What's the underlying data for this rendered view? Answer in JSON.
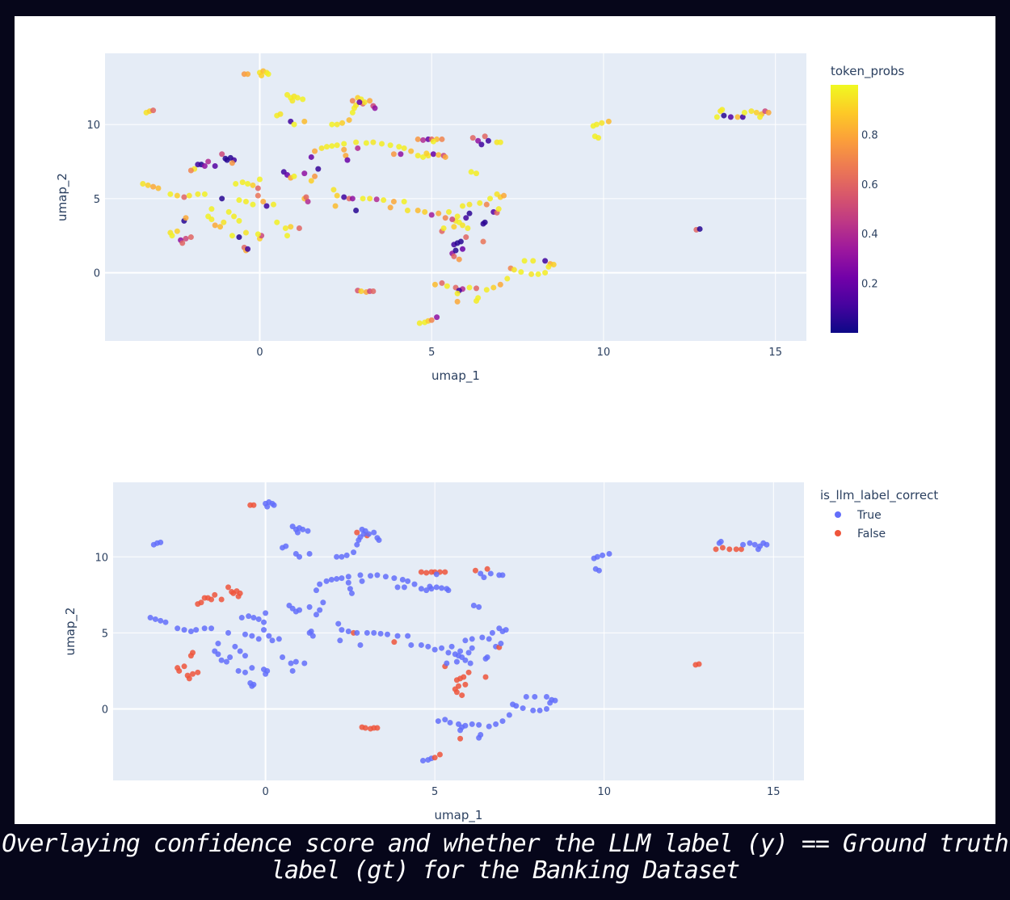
{
  "caption": "Overlaying confidence score and whether the LLM label (y) == Ground truth label (gt) for the Banking Dataset",
  "colors": {
    "true": "#636efa",
    "false": "#EF553B",
    "plot_bg": "#e5ecf6",
    "grid": "#ffffff"
  },
  "chart_data": [
    {
      "type": "scatter",
      "title": "",
      "xlabel": "umap_1",
      "ylabel": "umap_2",
      "xlim": [
        -4.5,
        15.9
      ],
      "ylim": [
        -4.6,
        14.8
      ],
      "xticks": [
        "0",
        "5",
        "10",
        "15"
      ],
      "yticks": [
        "0",
        "5",
        "10"
      ],
      "grid": true,
      "color_by": "token_probs",
      "colorbar": {
        "title": "token_probs",
        "range": [
          0.0,
          1.0
        ],
        "ticks": [
          "0.2",
          "0.4",
          "0.6",
          "0.8"
        ],
        "colorscale": "plasma",
        "placement": "right"
      }
    },
    {
      "type": "scatter",
      "title": "",
      "xlabel": "umap_1",
      "ylabel": "umap_2",
      "xlim": [
        -4.5,
        15.9
      ],
      "ylim": [
        -4.7,
        14.9
      ],
      "xticks": [
        "0",
        "5",
        "10",
        "15"
      ],
      "yticks": [
        "0",
        "5",
        "10"
      ],
      "grid": true,
      "color_by": "is_llm_label_correct",
      "legend": {
        "title": "is_llm_label_correct",
        "entries": [
          "True",
          "False"
        ],
        "placement": "top-right"
      }
    }
  ],
  "points_columns": [
    "umap_1",
    "umap_2",
    "token_probs",
    "is_llm_label_correct"
  ],
  "points": [
    [
      -3.3,
      10.8,
      0.95,
      1
    ],
    [
      -3.2,
      10.9,
      0.9,
      1
    ],
    [
      -3.1,
      10.95,
      0.6,
      1
    ],
    [
      -0.45,
      13.4,
      0.75,
      0
    ],
    [
      -0.35,
      13.4,
      0.8,
      0
    ],
    [
      0.0,
      13.5,
      0.95,
      1
    ],
    [
      0.1,
      13.6,
      0.85,
      1
    ],
    [
      0.2,
      13.5,
      0.95,
      1
    ],
    [
      0.25,
      13.4,
      0.98,
      1
    ],
    [
      0.05,
      13.3,
      0.9,
      1
    ],
    [
      0.8,
      12.0,
      0.97,
      1
    ],
    [
      0.9,
      11.8,
      0.98,
      1
    ],
    [
      1.0,
      11.9,
      0.95,
      1
    ],
    [
      1.1,
      11.8,
      0.97,
      1
    ],
    [
      1.25,
      11.7,
      0.98,
      1
    ],
    [
      0.95,
      11.6,
      0.96,
      1
    ],
    [
      0.5,
      10.6,
      0.97,
      1
    ],
    [
      0.6,
      10.7,
      0.95,
      1
    ],
    [
      0.9,
      10.2,
      0.1,
      1
    ],
    [
      1.0,
      10.0,
      0.98,
      1
    ],
    [
      1.3,
      10.2,
      0.85,
      1
    ],
    [
      2.1,
      10.0,
      0.98,
      1
    ],
    [
      2.25,
      10.0,
      0.96,
      1
    ],
    [
      2.4,
      10.1,
      0.9,
      1
    ],
    [
      2.6,
      10.3,
      0.85,
      1
    ],
    [
      2.7,
      10.8,
      0.98,
      1
    ],
    [
      2.75,
      11.1,
      0.97,
      1
    ],
    [
      2.8,
      11.3,
      0.95,
      1
    ],
    [
      2.7,
      11.6,
      0.7,
      0
    ],
    [
      2.85,
      11.8,
      0.9,
      1
    ],
    [
      2.95,
      11.7,
      0.97,
      1
    ],
    [
      3.0,
      11.4,
      0.6,
      0
    ],
    [
      3.05,
      11.5,
      0.95,
      1
    ],
    [
      3.2,
      11.6,
      0.8,
      1
    ],
    [
      3.3,
      11.25,
      0.5,
      1
    ],
    [
      3.35,
      11.1,
      0.3,
      1
    ],
    [
      2.9,
      11.5,
      0.2,
      1
    ],
    [
      1.5,
      7.8,
      0.2,
      1
    ],
    [
      1.6,
      8.2,
      0.8,
      1
    ],
    [
      1.8,
      8.4,
      0.95,
      1
    ],
    [
      1.95,
      8.5,
      0.97,
      1
    ],
    [
      2.1,
      8.55,
      0.98,
      1
    ],
    [
      2.25,
      8.6,
      0.97,
      1
    ],
    [
      2.45,
      8.3,
      0.8,
      1
    ],
    [
      2.5,
      7.9,
      0.8,
      1
    ],
    [
      2.55,
      7.6,
      0.2,
      1
    ],
    [
      2.45,
      8.7,
      0.98,
      1
    ],
    [
      2.8,
      8.8,
      0.97,
      1
    ],
    [
      2.85,
      8.4,
      0.4,
      1
    ],
    [
      3.1,
      8.75,
      0.98,
      1
    ],
    [
      3.3,
      8.8,
      0.96,
      1
    ],
    [
      3.55,
      8.7,
      0.97,
      1
    ],
    [
      3.8,
      8.6,
      0.98,
      1
    ],
    [
      4.05,
      8.5,
      0.98,
      1
    ],
    [
      4.2,
      8.4,
      0.97,
      1
    ],
    [
      3.9,
      8.0,
      0.75,
      1
    ],
    [
      4.1,
      8.0,
      0.3,
      1
    ],
    [
      4.4,
      8.2,
      0.85,
      1
    ],
    [
      4.6,
      9.0,
      0.75,
      0
    ],
    [
      4.75,
      8.95,
      0.4,
      0
    ],
    [
      4.9,
      9.0,
      0.2,
      0
    ],
    [
      5.0,
      9.0,
      0.6,
      0
    ],
    [
      5.15,
      9.0,
      0.85,
      0
    ],
    [
      5.3,
      9.0,
      0.7,
      0
    ],
    [
      5.05,
      8.85,
      0.98,
      1
    ],
    [
      4.6,
      7.9,
      0.97,
      1
    ],
    [
      4.75,
      7.8,
      0.98,
      1
    ],
    [
      4.9,
      7.9,
      0.95,
      1
    ],
    [
      5.05,
      8.0,
      0.2,
      1
    ],
    [
      5.2,
      7.95,
      0.85,
      1
    ],
    [
      5.35,
      7.9,
      0.5,
      1
    ],
    [
      5.4,
      7.8,
      0.8,
      1
    ],
    [
      4.85,
      8.05,
      0.9,
      1
    ],
    [
      6.2,
      9.1,
      0.6,
      0
    ],
    [
      6.35,
      8.9,
      0.3,
      1
    ],
    [
      6.65,
      8.9,
      0.1,
      1
    ],
    [
      6.9,
      8.8,
      0.95,
      1
    ],
    [
      7.0,
      8.8,
      0.97,
      1
    ],
    [
      6.45,
      8.65,
      0.1,
      1
    ],
    [
      6.55,
      9.2,
      0.6,
      0
    ],
    [
      6.15,
      6.8,
      0.98,
      1
    ],
    [
      6.3,
      6.7,
      0.97,
      1
    ],
    [
      -1.5,
      7.5,
      0.4,
      0
    ],
    [
      -1.7,
      7.3,
      0.05,
      0
    ],
    [
      -1.8,
      7.3,
      0.1,
      0
    ],
    [
      -1.6,
      7.2,
      0.3,
      0
    ],
    [
      -1.9,
      7.0,
      0.95,
      0
    ],
    [
      -2.0,
      6.9,
      0.7,
      0
    ],
    [
      -1.3,
      7.2,
      0.15,
      0
    ],
    [
      -1.1,
      8.0,
      0.5,
      0
    ],
    [
      -0.85,
      7.75,
      0.05,
      0
    ],
    [
      -0.75,
      7.6,
      0.1,
      0
    ],
    [
      -0.95,
      7.6,
      0.05,
      0
    ],
    [
      -1.0,
      7.7,
      0.05,
      0
    ],
    [
      -0.8,
      7.4,
      0.75,
      0
    ],
    [
      -3.4,
      6.0,
      0.95,
      1
    ],
    [
      -3.25,
      5.9,
      0.9,
      1
    ],
    [
      -3.1,
      5.8,
      0.8,
      1
    ],
    [
      -2.95,
      5.7,
      0.85,
      1
    ],
    [
      -2.6,
      5.3,
      0.98,
      1
    ],
    [
      -2.4,
      5.2,
      0.9,
      1
    ],
    [
      -2.2,
      5.1,
      0.6,
      1
    ],
    [
      -2.05,
      5.2,
      0.95,
      1
    ],
    [
      -1.8,
      5.3,
      0.97,
      1
    ],
    [
      -1.6,
      5.3,
      0.98,
      1
    ],
    [
      -1.1,
      5.0,
      0.05,
      1
    ],
    [
      -0.7,
      6.0,
      0.98,
      1
    ],
    [
      -0.5,
      6.1,
      0.97,
      1
    ],
    [
      -0.35,
      6.0,
      0.98,
      1
    ],
    [
      -0.2,
      5.9,
      0.9,
      1
    ],
    [
      -0.05,
      5.7,
      0.6,
      1
    ],
    [
      0.0,
      6.3,
      0.98,
      1
    ],
    [
      -0.05,
      5.2,
      0.65,
      1
    ],
    [
      -0.6,
      4.9,
      0.98,
      1
    ],
    [
      -0.4,
      4.8,
      0.97,
      1
    ],
    [
      -0.2,
      4.6,
      0.98,
      1
    ],
    [
      0.1,
      4.8,
      0.8,
      1
    ],
    [
      0.2,
      4.5,
      0.1,
      1
    ],
    [
      0.4,
      4.6,
      0.97,
      1
    ],
    [
      0.5,
      3.4,
      0.98,
      1
    ],
    [
      0.75,
      3.0,
      0.97,
      1
    ],
    [
      0.9,
      3.1,
      0.9,
      1
    ],
    [
      1.15,
      3.0,
      0.6,
      1
    ],
    [
      0.8,
      2.5,
      0.98,
      1
    ],
    [
      0.7,
      6.8,
      0.1,
      1
    ],
    [
      0.8,
      6.6,
      0.2,
      1
    ],
    [
      0.9,
      6.4,
      0.8,
      1
    ],
    [
      1.0,
      6.5,
      0.98,
      1
    ],
    [
      1.3,
      6.7,
      0.3,
      1
    ],
    [
      1.5,
      6.2,
      0.9,
      1
    ],
    [
      1.6,
      6.5,
      0.75,
      1
    ],
    [
      1.7,
      7.0,
      0.08,
      1
    ],
    [
      1.3,
      5.0,
      0.85,
      1
    ],
    [
      1.4,
      4.8,
      0.4,
      1
    ],
    [
      1.35,
      5.1,
      0.6,
      1
    ],
    [
      2.15,
      5.6,
      0.95,
      1
    ],
    [
      2.25,
      5.2,
      0.9,
      1
    ],
    [
      2.45,
      5.1,
      0.1,
      1
    ],
    [
      2.6,
      5.0,
      0.6,
      0
    ],
    [
      2.7,
      5.0,
      0.3,
      1
    ],
    [
      2.8,
      4.2,
      0.05,
      1
    ],
    [
      2.2,
      4.5,
      0.85,
      1
    ],
    [
      3.0,
      5.0,
      0.98,
      1
    ],
    [
      3.2,
      5.0,
      0.95,
      1
    ],
    [
      3.4,
      4.95,
      0.4,
      1
    ],
    [
      3.6,
      4.9,
      0.97,
      1
    ],
    [
      3.9,
      4.8,
      0.8,
      1
    ],
    [
      4.2,
      4.8,
      0.98,
      1
    ],
    [
      3.8,
      4.4,
      0.8,
      0
    ],
    [
      4.3,
      4.2,
      0.95,
      1
    ],
    [
      4.6,
      4.2,
      0.85,
      1
    ],
    [
      4.8,
      4.1,
      0.9,
      1
    ],
    [
      5.0,
      3.9,
      0.35,
      1
    ],
    [
      5.2,
      4.0,
      0.8,
      1
    ],
    [
      5.4,
      3.7,
      0.7,
      1
    ],
    [
      5.5,
      4.1,
      0.97,
      1
    ],
    [
      5.7,
      3.5,
      0.95,
      1
    ],
    [
      5.8,
      3.4,
      0.98,
      1
    ],
    [
      5.9,
      3.2,
      0.95,
      1
    ],
    [
      6.05,
      3.0,
      0.97,
      1
    ],
    [
      5.6,
      3.6,
      0.5,
      1
    ],
    [
      5.65,
      3.1,
      0.9,
      1
    ],
    [
      6.0,
      3.7,
      0.1,
      1
    ],
    [
      6.1,
      4.0,
      0.06,
      1
    ],
    [
      5.3,
      2.8,
      0.6,
      0
    ],
    [
      5.35,
      3.0,
      0.97,
      1
    ],
    [
      5.75,
      3.8,
      0.97,
      1
    ],
    [
      5.9,
      4.5,
      0.97,
      1
    ],
    [
      6.1,
      4.6,
      0.95,
      1
    ],
    [
      6.4,
      4.7,
      0.97,
      1
    ],
    [
      6.6,
      4.6,
      0.7,
      1
    ],
    [
      6.7,
      5.0,
      0.98,
      1
    ],
    [
      6.9,
      5.3,
      0.95,
      1
    ],
    [
      7.0,
      5.1,
      0.9,
      1
    ],
    [
      7.1,
      5.2,
      0.8,
      1
    ],
    [
      6.8,
      4.1,
      0.15,
      1
    ],
    [
      6.9,
      4.05,
      0.6,
      0
    ],
    [
      6.55,
      3.4,
      0.05,
      1
    ],
    [
      6.5,
      3.3,
      0.06,
      1
    ],
    [
      6.95,
      4.3,
      0.97,
      1
    ],
    [
      5.65,
      1.9,
      0.1,
      0
    ],
    [
      5.75,
      2.0,
      0.05,
      0
    ],
    [
      5.85,
      2.1,
      0.05,
      0
    ],
    [
      5.9,
      1.6,
      0.2,
      0
    ],
    [
      5.6,
      1.3,
      0.3,
      0
    ],
    [
      5.65,
      1.1,
      0.6,
      0
    ],
    [
      5.8,
      0.9,
      0.75,
      0
    ],
    [
      5.7,
      1.5,
      0.05,
      0
    ],
    [
      6.0,
      2.4,
      0.6,
      0
    ],
    [
      6.5,
      2.1,
      0.65,
      0
    ],
    [
      7.3,
      0.3,
      0.7,
      1
    ],
    [
      7.4,
      0.2,
      0.95,
      1
    ],
    [
      7.6,
      0.05,
      0.98,
      1
    ],
    [
      7.9,
      -0.1,
      0.95,
      1
    ],
    [
      8.1,
      -0.1,
      0.98,
      1
    ],
    [
      8.3,
      0.0,
      0.97,
      1
    ],
    [
      7.7,
      0.8,
      0.98,
      1
    ],
    [
      7.95,
      0.8,
      0.97,
      1
    ],
    [
      8.3,
      0.8,
      0.1,
      1
    ],
    [
      8.45,
      0.6,
      0.8,
      1
    ],
    [
      8.55,
      0.55,
      0.9,
      1
    ],
    [
      8.4,
      0.4,
      0.97,
      1
    ],
    [
      5.1,
      -0.8,
      0.85,
      1
    ],
    [
      5.3,
      -0.7,
      0.6,
      1
    ],
    [
      5.45,
      -0.9,
      0.97,
      1
    ],
    [
      5.7,
      -1.0,
      0.6,
      1
    ],
    [
      5.9,
      -1.1,
      0.4,
      1
    ],
    [
      6.1,
      -1.0,
      0.98,
      1
    ],
    [
      6.3,
      -1.05,
      0.6,
      1
    ],
    [
      6.6,
      -1.15,
      0.97,
      1
    ],
    [
      6.8,
      -1.0,
      0.9,
      1
    ],
    [
      7.0,
      -0.8,
      0.8,
      1
    ],
    [
      7.2,
      -0.4,
      0.97,
      1
    ],
    [
      5.8,
      -1.2,
      0.1,
      1
    ],
    [
      5.75,
      -1.4,
      0.97,
      1
    ],
    [
      5.75,
      -1.95,
      0.8,
      0
    ],
    [
      6.35,
      -1.7,
      0.98,
      1
    ],
    [
      6.3,
      -1.9,
      0.97,
      1
    ],
    [
      2.85,
      -1.2,
      0.55,
      0
    ],
    [
      2.95,
      -1.25,
      0.9,
      0
    ],
    [
      3.1,
      -1.3,
      0.8,
      0
    ],
    [
      3.2,
      -1.25,
      0.5,
      0
    ],
    [
      3.3,
      -1.25,
      0.6,
      0
    ],
    [
      4.65,
      -3.4,
      0.97,
      1
    ],
    [
      4.8,
      -3.35,
      0.98,
      1
    ],
    [
      4.9,
      -3.25,
      0.9,
      1
    ],
    [
      5.0,
      -3.2,
      0.7,
      0
    ],
    [
      5.15,
      -3.0,
      0.3,
      0
    ],
    [
      -2.3,
      2.2,
      0.3,
      0
    ],
    [
      -2.15,
      2.3,
      0.5,
      0
    ],
    [
      -2.0,
      2.4,
      0.6,
      0
    ],
    [
      -2.25,
      2.0,
      0.6,
      0
    ],
    [
      -2.6,
      2.7,
      0.95,
      0
    ],
    [
      -2.55,
      2.5,
      0.98,
      0
    ],
    [
      -2.4,
      2.8,
      0.9,
      0
    ],
    [
      -2.2,
      3.5,
      0.05,
      0
    ],
    [
      -2.15,
      3.7,
      0.8,
      0
    ],
    [
      -1.5,
      3.8,
      0.98,
      1
    ],
    [
      -1.4,
      3.6,
      0.97,
      1
    ],
    [
      -1.3,
      3.2,
      0.8,
      1
    ],
    [
      -1.15,
      3.1,
      0.85,
      1
    ],
    [
      -1.05,
      3.4,
      0.95,
      1
    ],
    [
      -0.9,
      4.1,
      0.98,
      1
    ],
    [
      -0.75,
      3.8,
      0.97,
      1
    ],
    [
      -0.6,
      3.5,
      0.98,
      1
    ],
    [
      -0.4,
      2.7,
      0.95,
      1
    ],
    [
      -0.6,
      2.4,
      0.05,
      1
    ],
    [
      -0.8,
      2.5,
      0.98,
      1
    ],
    [
      -1.4,
      4.3,
      0.98,
      1
    ],
    [
      -0.45,
      1.7,
      0.6,
      1
    ],
    [
      -0.4,
      1.5,
      0.8,
      1
    ],
    [
      -0.35,
      1.6,
      0.1,
      1
    ],
    [
      0.0,
      2.3,
      0.9,
      1
    ],
    [
      0.05,
      2.5,
      0.5,
      1
    ],
    [
      -0.05,
      2.6,
      0.98,
      1
    ],
    [
      9.7,
      9.9,
      0.98,
      1
    ],
    [
      9.8,
      10.0,
      0.97,
      1
    ],
    [
      9.95,
      10.1,
      0.95,
      1
    ],
    [
      10.15,
      10.2,
      0.85,
      1
    ],
    [
      9.75,
      9.2,
      0.98,
      1
    ],
    [
      9.85,
      9.1,
      0.97,
      1
    ],
    [
      12.7,
      2.9,
      0.6,
      0
    ],
    [
      12.8,
      2.95,
      0.05,
      0
    ],
    [
      13.3,
      10.5,
      0.98,
      0
    ],
    [
      13.4,
      10.9,
      0.95,
      1
    ],
    [
      13.5,
      10.6,
      0.05,
      0
    ],
    [
      13.7,
      10.5,
      0.15,
      0
    ],
    [
      13.9,
      10.5,
      0.85,
      0
    ],
    [
      14.05,
      10.5,
      0.1,
      0
    ],
    [
      13.45,
      11.0,
      0.97,
      1
    ],
    [
      14.1,
      10.8,
      0.98,
      1
    ],
    [
      14.3,
      10.9,
      0.95,
      1
    ],
    [
      14.45,
      10.8,
      0.9,
      1
    ],
    [
      14.6,
      10.7,
      0.85,
      1
    ],
    [
      14.7,
      10.9,
      0.5,
      1
    ],
    [
      14.8,
      10.8,
      0.8,
      1
    ],
    [
      14.55,
      10.5,
      0.97,
      1
    ]
  ]
}
